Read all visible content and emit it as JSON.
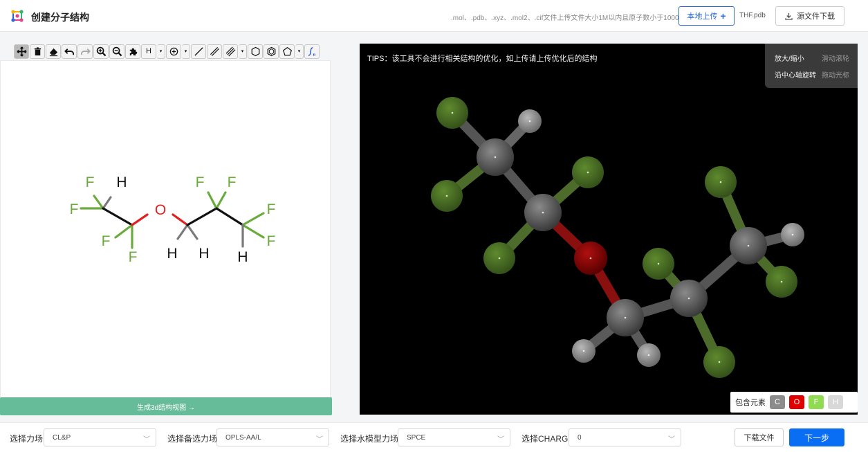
{
  "header": {
    "title": "创建分子结构",
    "upload_hint": ".mol、.pdb、.xyz、.mol2、.cif文件上传文件大小1M以内且原子数小于1000",
    "upload_button": "本地上传",
    "file_name": "THF.pdb",
    "download_source_button": "源文件下载"
  },
  "toolbar": {
    "hydrogen_label": "H",
    "dropdown_glyph": "▾"
  },
  "editor": {
    "atoms": {
      "f1": "F",
      "h1": "H",
      "f2": "F",
      "f3": "F",
      "f4": "F",
      "o": "O",
      "h2": "H",
      "h3": "H",
      "f5": "F",
      "f6": "F",
      "f7": "F",
      "f8": "F",
      "h4": "H"
    },
    "generate_3d_button": "生成3d结构视图 →"
  },
  "viewer": {
    "tips": "TIPS：该工具不会进行相关结构的优化，如上传请上传优化后的结构",
    "controls": [
      {
        "action": "放大/缩小",
        "input": "滑动滚轮"
      },
      {
        "action": "沿中心轴旋转",
        "input": "拖动光标"
      }
    ],
    "elements_label": "包含元素",
    "elements": [
      {
        "symbol": "C",
        "color": "#8c8c8c"
      },
      {
        "symbol": "O",
        "color": "#e00000"
      },
      {
        "symbol": "F",
        "color": "#8fdc52"
      },
      {
        "symbol": "H",
        "color": "#d8d8d8"
      }
    ]
  },
  "bottom": {
    "force_field_label": "选择力场",
    "force_field_value": "CL&P",
    "backup_ff_label": "选择备选力场",
    "backup_ff_value": "OPLS-AA/L",
    "water_model_label": "选择水模型力场",
    "water_model_value": "SPCE",
    "charge_label": "选择CHARGE",
    "charge_value": "0",
    "download_file_button": "下载文件",
    "next_button": "下一步"
  },
  "colors": {
    "primary": "#0a6ef5",
    "green_button": "#66bb98",
    "fluorine": "#6aab3c",
    "oxygen": "#e32020"
  }
}
